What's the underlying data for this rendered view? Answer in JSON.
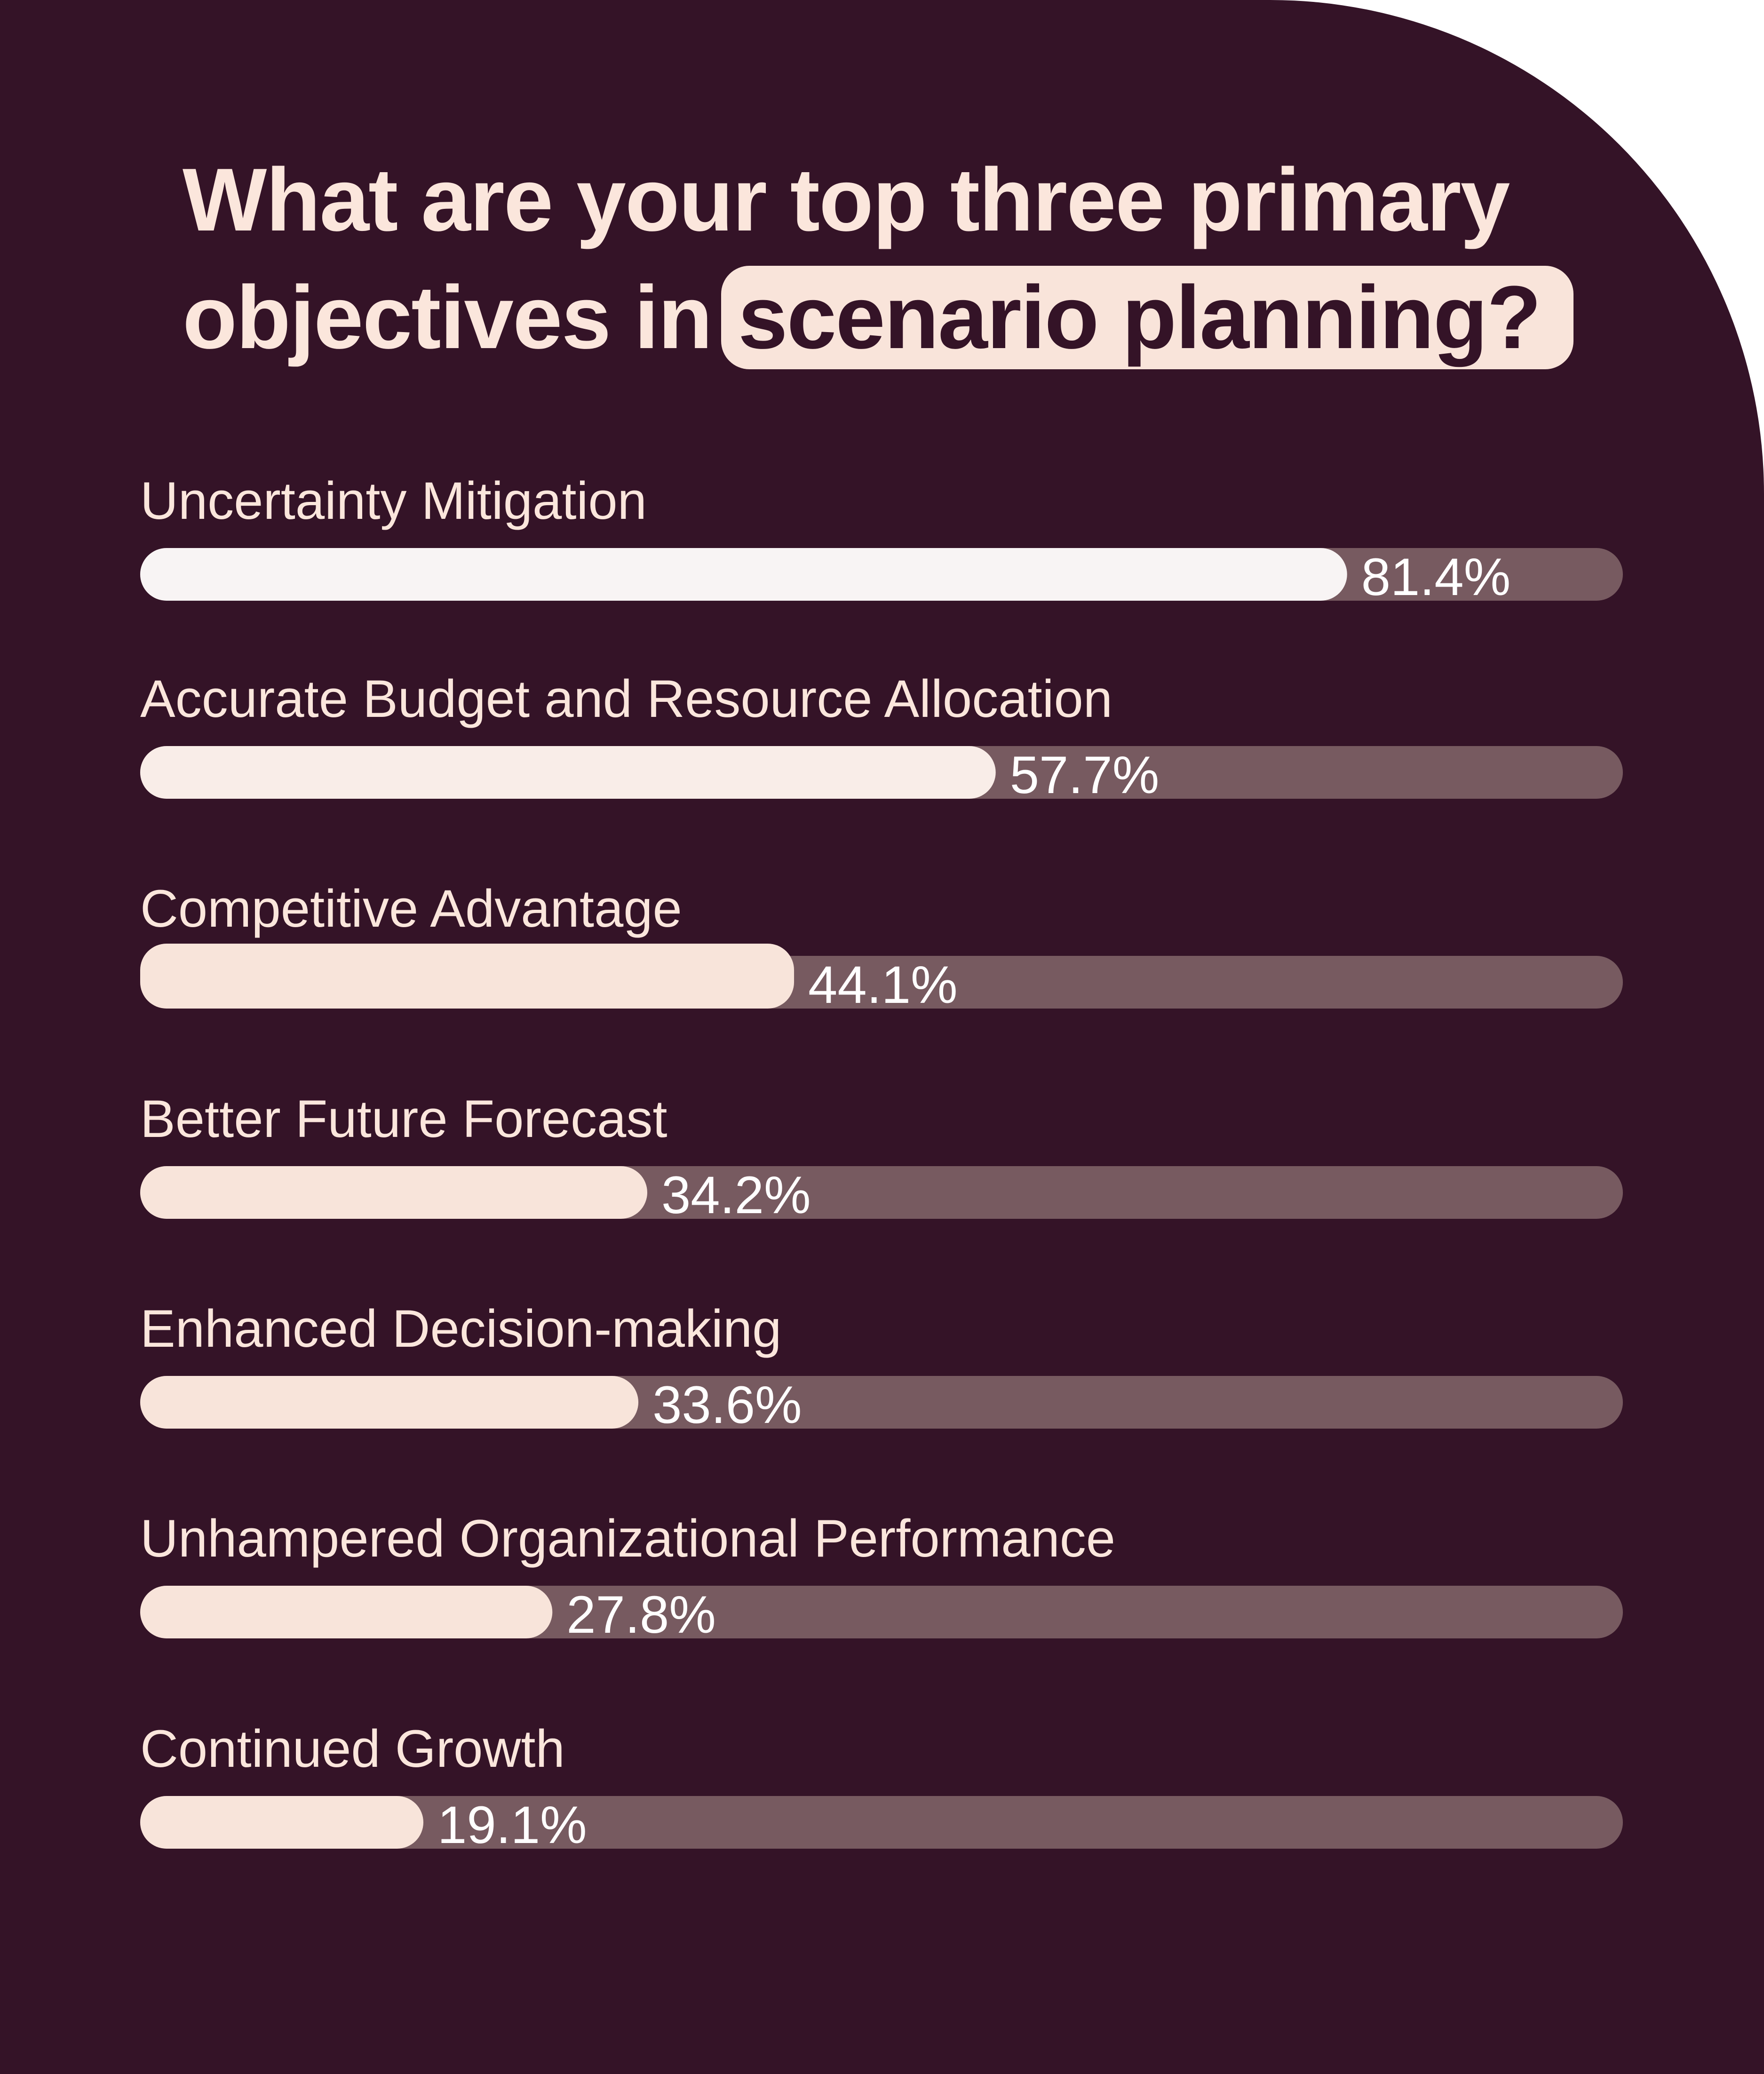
{
  "colors": {
    "background": "#341327",
    "title_text": "#fbe6dc",
    "highlight_bg": "#f9e4da",
    "highlight_text": "#341327",
    "track": "#775a60",
    "label_text": "#fbe6dc",
    "value_text": "#ffffff",
    "bar_fills": [
      "#f8f4f4",
      "#f9ede8",
      "#f8e4da",
      "#f8e4da",
      "#f8e4da",
      "#f8e4da",
      "#f8e4da"
    ]
  },
  "title": {
    "line1": "What are your top three primary",
    "line2_prefix": "objectives in",
    "highlight": "scenario planning?"
  },
  "chart_data": {
    "type": "bar",
    "orientation": "horizontal",
    "title": "What are your top three primary objectives in scenario planning?",
    "categories": [
      "Uncertainty Mitigation",
      "Accurate Budget and Resource Allocation",
      "Competitive Advantage",
      "Better Future Forecast",
      "Enhanced Decision-making",
      "Unhampered Organizational Performance",
      "Continued Growth"
    ],
    "values": [
      81.4,
      57.7,
      44.1,
      34.2,
      33.6,
      27.8,
      19.1
    ],
    "value_labels": [
      "81.4%",
      "57.7%",
      "44.1%",
      "34.2%",
      "33.6%",
      "27.8%",
      "19.1%"
    ],
    "unit": "%",
    "xlim": [
      0,
      100
    ],
    "grid": false,
    "legend": "none"
  }
}
